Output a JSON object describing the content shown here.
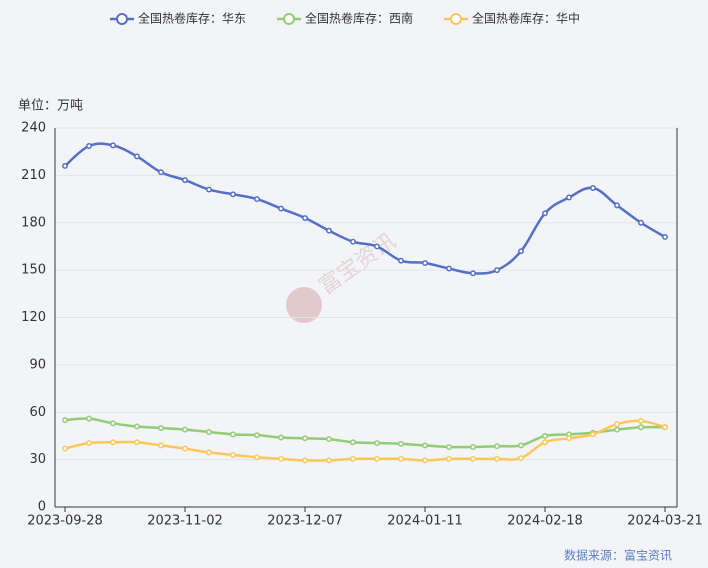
{
  "chart_data": {
    "type": "line",
    "y_label": "单位：万吨",
    "source": "数据来源：富宝资讯",
    "watermark": "富宝资讯",
    "categories": [
      "2023-09-28",
      null,
      null,
      null,
      null,
      "2023-11-02",
      null,
      null,
      null,
      null,
      "2023-12-07",
      null,
      null,
      null,
      null,
      "2024-01-11",
      null,
      null,
      null,
      null,
      "2024-02-18",
      null,
      null,
      null,
      null,
      "2024-03-21"
    ],
    "ylim": [
      0,
      240
    ],
    "yticks": [
      0,
      30,
      60,
      90,
      120,
      150,
      180,
      210,
      240
    ],
    "grid": true,
    "legend": "top",
    "series": [
      {
        "name": "全国热卷库存：华东",
        "color": "#5470c6",
        "values": [
          216,
          228.6,
          229,
          222,
          212,
          207,
          201,
          198,
          195,
          189,
          183,
          175,
          168,
          165,
          156,
          154.5,
          151,
          148,
          150,
          162,
          186,
          196,
          202,
          191,
          180,
          171
        ]
      },
      {
        "name": "全国热卷库存：西南",
        "color": "#91cc75",
        "values": [
          55,
          56,
          53,
          51,
          50,
          49,
          47.5,
          46,
          45.5,
          44,
          43.5,
          43,
          41,
          40.5,
          40,
          39,
          38,
          38,
          38.5,
          39,
          45,
          46,
          47,
          49,
          50.5,
          50.5
        ]
      },
      {
        "name": "全国热卷库存：华中",
        "color": "#fac858",
        "values": [
          37,
          40.5,
          41,
          41,
          39,
          37,
          34.5,
          33,
          31.5,
          30.5,
          29.5,
          29.5,
          30.5,
          30.5,
          30.5,
          29.5,
          30.5,
          30.5,
          30.5,
          31,
          41,
          43.5,
          46,
          52.5,
          54.5,
          50.5
        ]
      }
    ]
  }
}
